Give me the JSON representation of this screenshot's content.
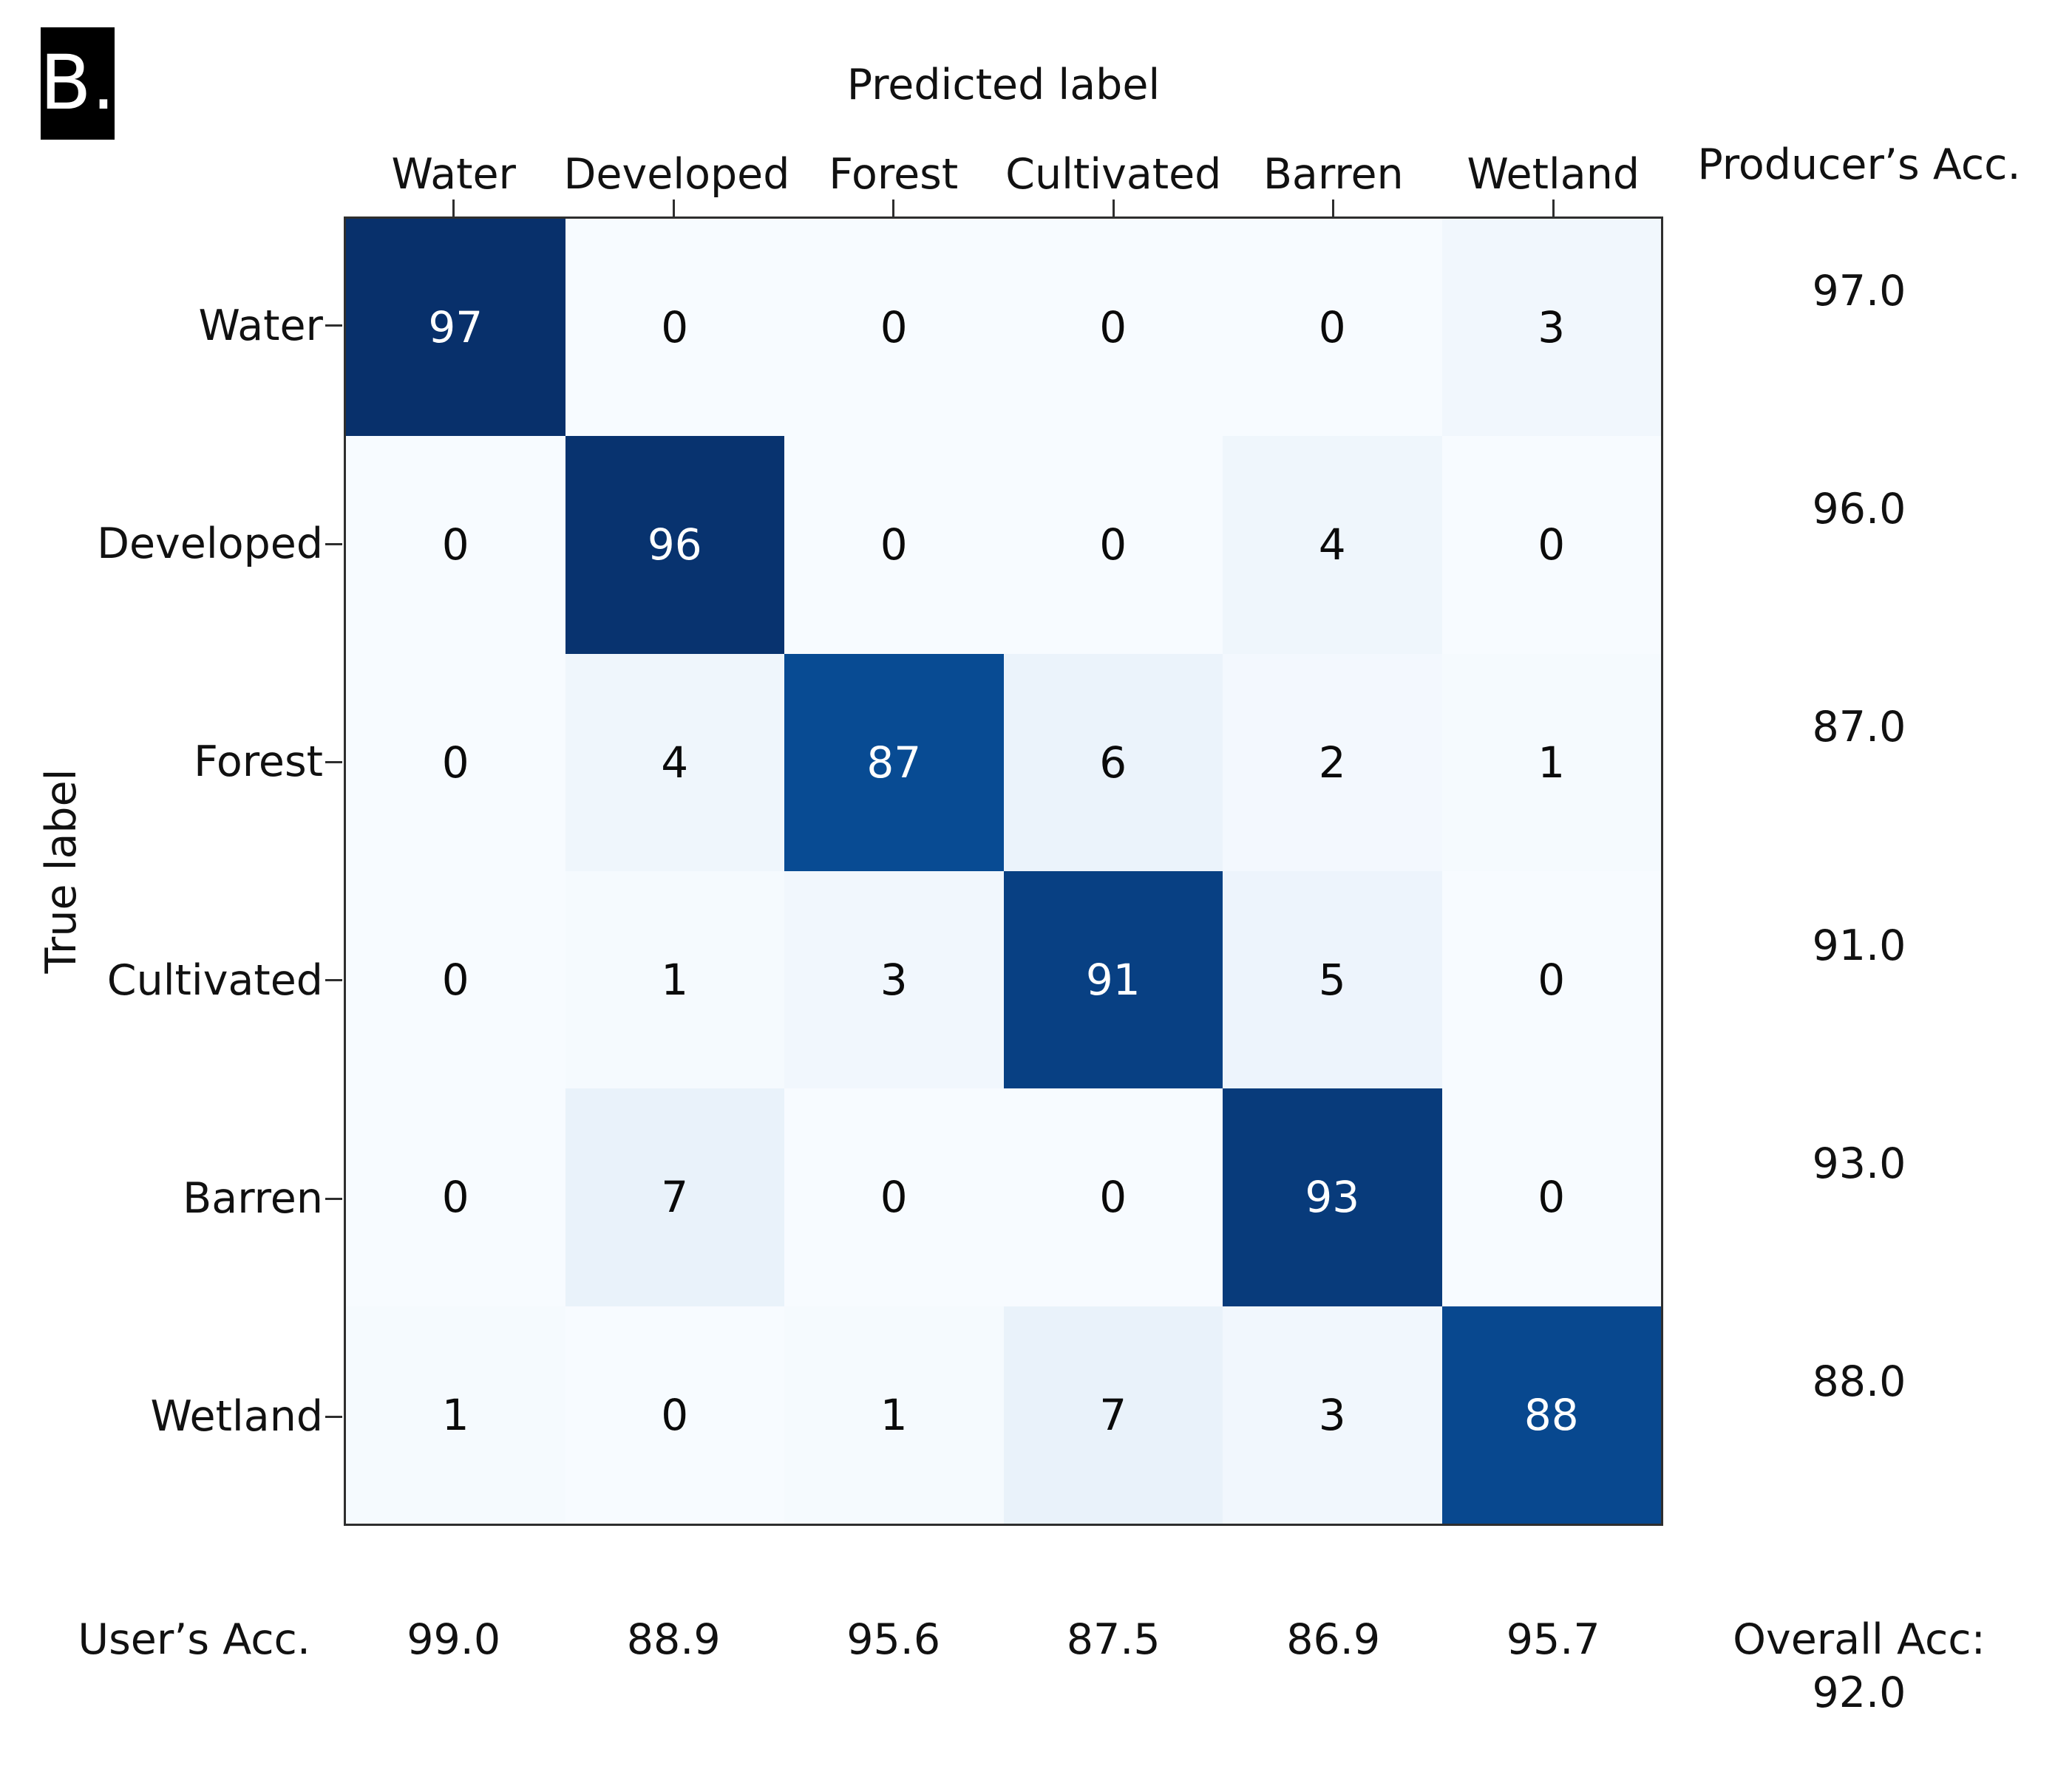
{
  "panel_label": "B.",
  "chart_data": {
    "type": "heatmap",
    "title": "Predicted label",
    "xlabel": "Predicted label",
    "ylabel": "True label",
    "classes": [
      "Water",
      "Developed",
      "Forest",
      "Cultivated",
      "Barren",
      "Wetland"
    ],
    "matrix": [
      [
        97,
        0,
        0,
        0,
        0,
        3
      ],
      [
        0,
        96,
        0,
        0,
        4,
        0
      ],
      [
        0,
        4,
        87,
        6,
        2,
        1
      ],
      [
        0,
        1,
        3,
        91,
        5,
        0
      ],
      [
        0,
        7,
        0,
        0,
        93,
        0
      ],
      [
        1,
        0,
        1,
        7,
        3,
        88
      ]
    ],
    "producers_acc_label": "Producer’s Acc.",
    "producers_acc": [
      "97.0",
      "96.0",
      "87.0",
      "91.0",
      "93.0",
      "88.0"
    ],
    "users_acc_label": "User’s Acc.",
    "users_acc": [
      "99.0",
      "88.9",
      "95.6",
      "87.5",
      "86.9",
      "95.7"
    ],
    "overall_acc_label": "Overall Acc:",
    "overall_acc": "92.0",
    "colormap": "Blues",
    "vmin": 0,
    "vmax": 97,
    "colors": {
      "colormap_dark": "#08306b",
      "colormap_light": "#f7fbff",
      "cell_text_light": "#ffffff",
      "cell_text_dark": "#0a0a0a",
      "axes_border": "#2e2e2e",
      "panel_badge_bg": "#000000",
      "panel_badge_text": "#ffffff"
    },
    "grid": false,
    "legend": "none"
  }
}
